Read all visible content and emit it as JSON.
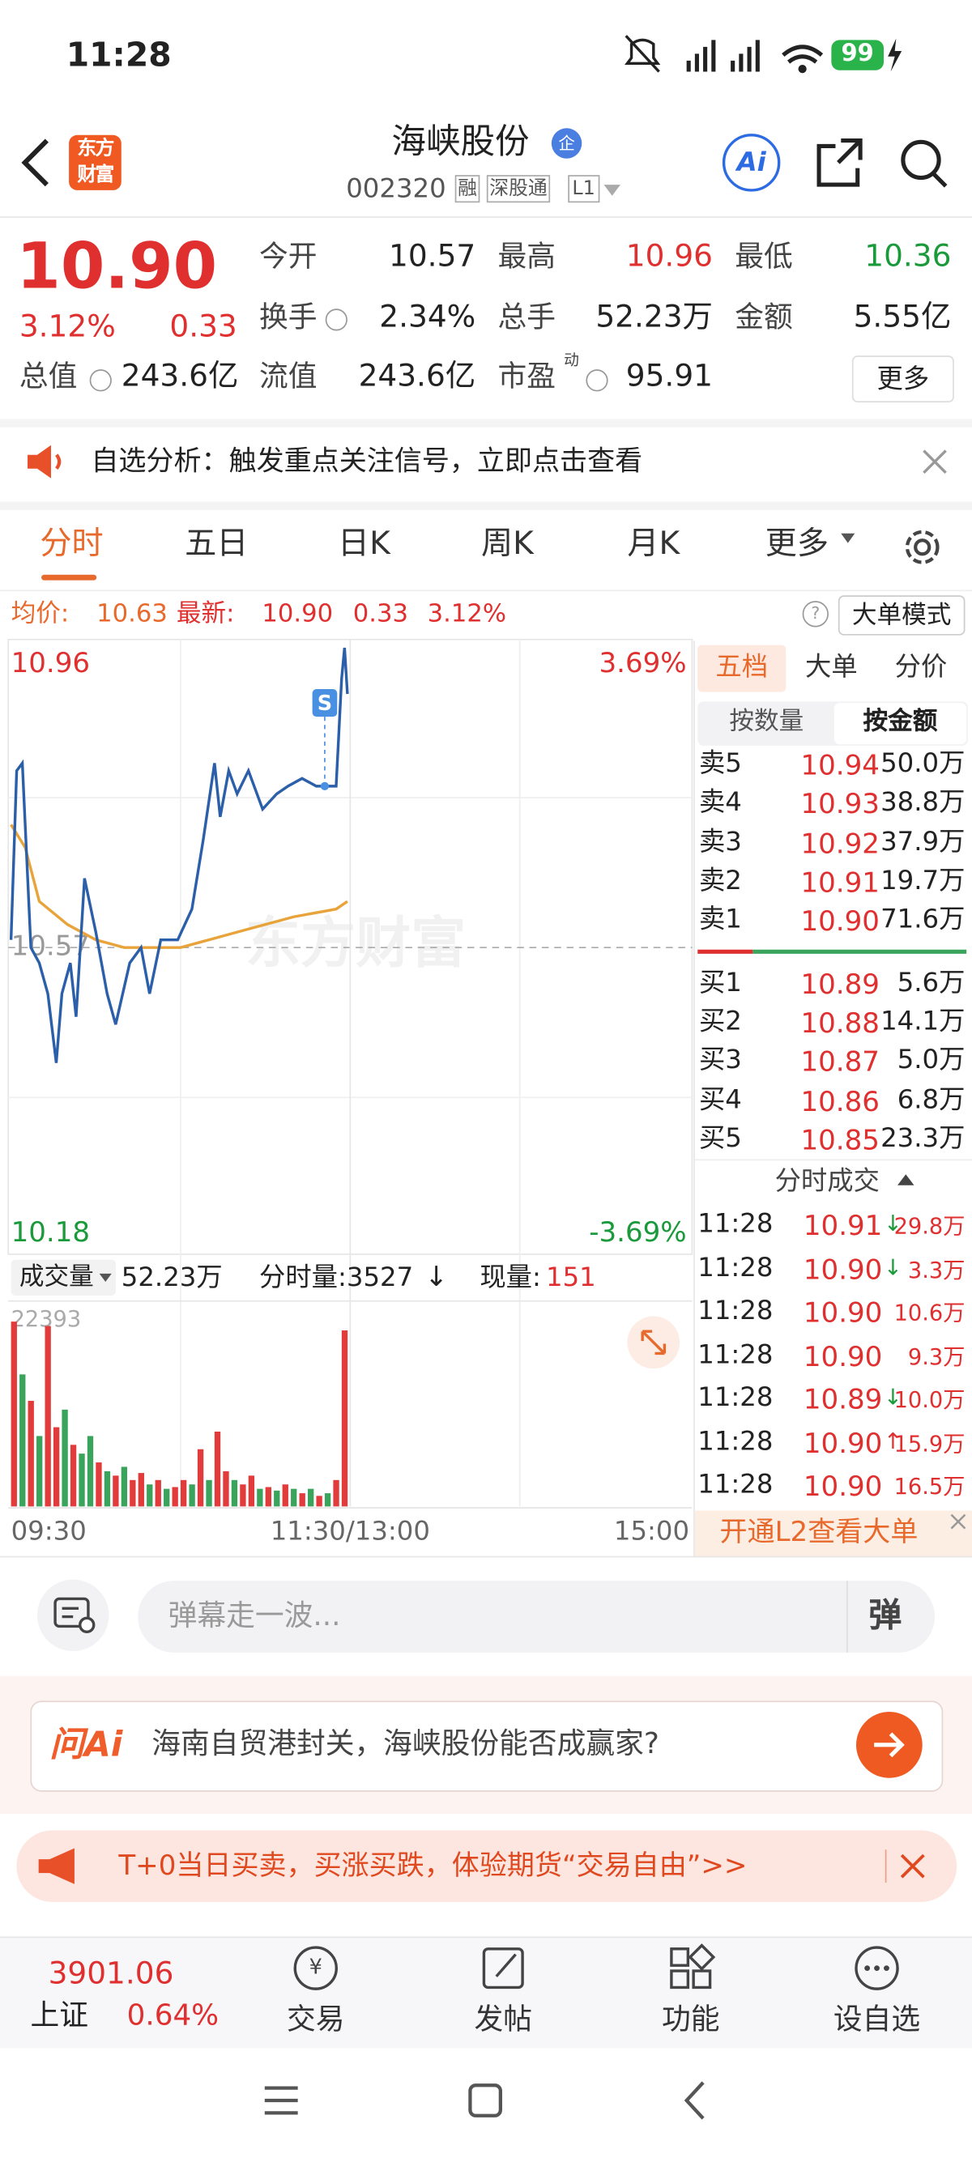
{
  "status_bar": {
    "time": "11:28",
    "battery": "99"
  },
  "header": {
    "logo": "东方财富",
    "title": "海峡股份",
    "badge": "企",
    "code": "002320",
    "tags": [
      "融",
      "深股通",
      "L1"
    ],
    "ai": "Ai"
  },
  "quote": {
    "price": "10.90",
    "change_pct": "3.12%",
    "change": "0.33",
    "more": "更多",
    "fields": [
      {
        "label": "今开",
        "value": "10.57"
      },
      {
        "label": "最高",
        "value": "10.96",
        "color": "#e02f2f"
      },
      {
        "label": "最低",
        "value": "10.36",
        "color": "#1a9a3a"
      },
      {
        "label": "换手",
        "value": "2.34%"
      },
      {
        "label": "总手",
        "value": "52.23万"
      },
      {
        "label": "金额",
        "value": "5.55亿"
      },
      {
        "label": "总值",
        "value": "243.6亿"
      },
      {
        "label": "流值",
        "value": "243.6亿"
      },
      {
        "label": "市盈",
        "sup": "动",
        "value": "95.91"
      }
    ]
  },
  "banner": {
    "text": "自选分析：触发重点关注信号，立即点击查看"
  },
  "tabs": [
    "分时",
    "五日",
    "日K",
    "周K",
    "月K",
    "更多"
  ],
  "info_line": {
    "avg_label": "均价:",
    "avg": "10.63",
    "last_label": "最新:",
    "last": "10.90",
    "change": "0.33",
    "change_pct": "3.12%",
    "mode": "大单模式"
  },
  "volume_header": {
    "label": "成交量",
    "total": "52.23万",
    "minute": "分时量:3527",
    "current_label": "现量:",
    "current": "151"
  },
  "chart_data": [
    {
      "type": "line",
      "watermark": "东方财富",
      "xlim": [
        0,
        240
      ],
      "xticks": [
        {
          "value": 0,
          "label": "09:30"
        },
        {
          "value": 120,
          "label": "11:30/13:00"
        },
        {
          "value": 240,
          "label": "15:00"
        }
      ],
      "ylim": [
        10.18,
        10.96
      ],
      "yticks": [
        10.96,
        10.57,
        10.18
      ],
      "y2lim": [
        -3.69,
        3.69
      ],
      "y2ticks": [
        {
          "value": 3.69,
          "label": "3.69%"
        },
        {
          "value": -3.69,
          "label": "-3.69%"
        }
      ],
      "annotation": {
        "text": "S",
        "x": 111,
        "y": 10.78
      },
      "series": [
        {
          "color": "#2c5faa",
          "x": [
            0,
            2,
            4,
            7,
            10,
            13,
            16,
            18,
            21,
            23,
            26,
            30,
            34,
            37,
            42,
            46,
            49,
            53,
            59,
            64,
            68,
            72,
            74,
            77,
            80,
            84,
            89,
            94,
            98,
            103,
            108,
            111,
            115,
            117,
            118,
            119
          ],
          "values": [
            10.58,
            10.8,
            10.81,
            10.57,
            10.55,
            10.51,
            10.42,
            10.51,
            10.55,
            10.48,
            10.66,
            10.59,
            10.51,
            10.47,
            10.55,
            10.57,
            10.51,
            10.58,
            10.58,
            10.62,
            10.71,
            10.81,
            10.74,
            10.8,
            10.77,
            10.8,
            10.75,
            10.77,
            10.78,
            10.79,
            10.78,
            10.78,
            10.78,
            10.92,
            10.96,
            10.9
          ]
        },
        {
          "color": "#e8a33a",
          "x": [
            0,
            5,
            10,
            20,
            30,
            40,
            60,
            80,
            100,
            115,
            119
          ],
          "values": [
            10.73,
            10.7,
            10.63,
            10.6,
            10.58,
            10.57,
            10.57,
            10.59,
            10.61,
            10.62,
            10.63
          ]
        }
      ]
    },
    {
      "type": "bar",
      "xlim": [
        0,
        240
      ],
      "ylim": [
        0,
        22393
      ],
      "yticks": [
        22393
      ],
      "x": [
        0,
        3,
        6,
        9,
        12,
        15,
        18,
        21,
        24,
        27,
        30,
        33,
        36,
        39,
        42,
        45,
        48,
        51,
        54,
        57,
        60,
        63,
        66,
        69,
        72,
        75,
        78,
        81,
        84,
        87,
        90,
        93,
        96,
        99,
        102,
        105,
        108,
        111,
        114,
        117
      ],
      "values": [
        21000,
        15000,
        12000,
        8000,
        20500,
        9000,
        11000,
        7000,
        6000,
        8000,
        5000,
        4000,
        3500,
        4500,
        3000,
        3800,
        2500,
        3000,
        2000,
        2200,
        3000,
        2500,
        6500,
        3000,
        8500,
        4000,
        3000,
        2500,
        3500,
        2000,
        2200,
        1800,
        2500,
        2000,
        1500,
        2000,
        1200,
        1500,
        3000,
        20000
      ],
      "colors": [
        "#e23b3b",
        "#3aa35c",
        "#e23b3b",
        "#3aa35c",
        "#e23b3b",
        "#e23b3b",
        "#3aa35c",
        "#e23b3b",
        "#3aa35c",
        "#3aa35c",
        "#e23b3b",
        "#3aa35c",
        "#e23b3b",
        "#3aa35c",
        "#e23b3b",
        "#e23b3b",
        "#3aa35c",
        "#e23b3b",
        "#3aa35c",
        "#e23b3b",
        "#e23b3b",
        "#3aa35c",
        "#e23b3b",
        "#3aa35c",
        "#e23b3b",
        "#e23b3b",
        "#3aa35c",
        "#e23b3b",
        "#e23b3b",
        "#3aa35c",
        "#e23b3b",
        "#3aa35c",
        "#e23b3b",
        "#3aa35c",
        "#e23b3b",
        "#3aa35c",
        "#e23b3b",
        "#3aa35c",
        "#e23b3b",
        "#e23b3b"
      ]
    }
  ],
  "order_book": {
    "tabs": [
      "五档",
      "大单",
      "分价"
    ],
    "sub_tabs": [
      "按数量",
      "按金额"
    ],
    "sells": [
      {
        "label": "卖5",
        "price": "10.94",
        "volume": "50.0万"
      },
      {
        "label": "卖4",
        "price": "10.93",
        "volume": "38.8万"
      },
      {
        "label": "卖3",
        "price": "10.92",
        "volume": "37.9万"
      },
      {
        "label": "卖2",
        "price": "10.91",
        "volume": "19.7万"
      },
      {
        "label": "卖1",
        "price": "10.90",
        "volume": "71.6万"
      }
    ],
    "buys": [
      {
        "label": "买1",
        "price": "10.89",
        "volume": "5.6万"
      },
      {
        "label": "买2",
        "price": "10.88",
        "volume": "14.1万"
      },
      {
        "label": "买3",
        "price": "10.87",
        "volume": "5.0万"
      },
      {
        "label": "买4",
        "price": "10.86",
        "volume": "6.8万"
      },
      {
        "label": "买5",
        "price": "10.85",
        "volume": "23.3万"
      }
    ],
    "trades_title": "分时成交",
    "trades": [
      {
        "time": "11:28",
        "price": "10.91",
        "arrow": "↓",
        "volume": "29.8万"
      },
      {
        "time": "11:28",
        "price": "10.90",
        "arrow": "↓",
        "volume": "3.3万"
      },
      {
        "time": "11:28",
        "price": "10.90",
        "volume": "10.6万"
      },
      {
        "time": "11:28",
        "price": "10.90",
        "volume": "9.3万"
      },
      {
        "time": "11:28",
        "price": "10.89",
        "arrow": "↓",
        "volume": "10.0万"
      },
      {
        "time": "11:28",
        "price": "10.90",
        "arrow": "↑",
        "volume": "15.9万"
      },
      {
        "time": "11:28",
        "price": "10.90",
        "volume": "16.5万"
      }
    ],
    "l2": "开通L2查看大单"
  },
  "danmu": {
    "placeholder": "弹幕走一波...",
    "button": "弹"
  },
  "ask_ai": {
    "logo": "问Ai",
    "question": "海南自贸港封关，海峡股份能否成赢家?"
  },
  "promo": {
    "text": "T+0当日买卖，买涨买跌，体验期货“交易自由”>>"
  },
  "bottom_bar": {
    "index_value": "3901.06",
    "index_name": "上证",
    "index_change": "0.64%",
    "nav": [
      "交易",
      "发帖",
      "功能",
      "设自选"
    ]
  }
}
